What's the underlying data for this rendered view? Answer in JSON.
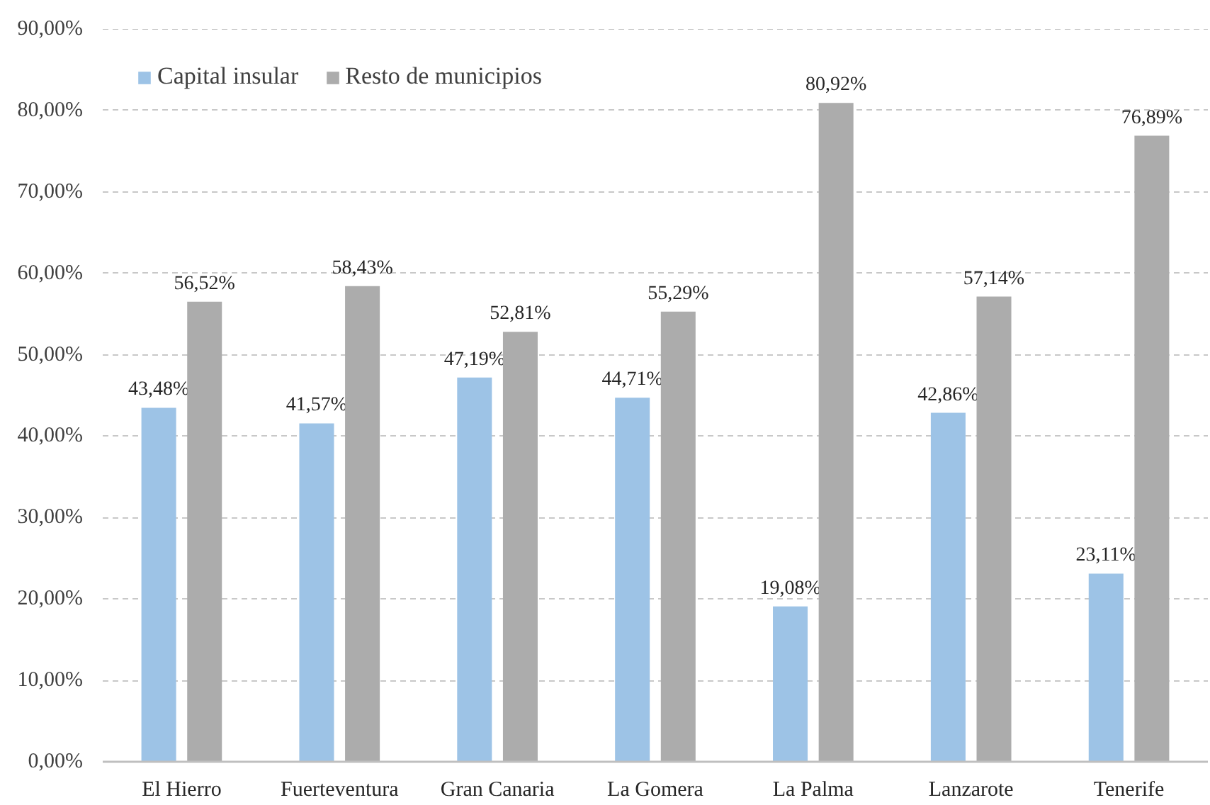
{
  "chart_data": {
    "type": "bar",
    "categories": [
      "El Hierro",
      "Fuerteventura",
      "Gran Canaria",
      "La Gomera",
      "La Palma",
      "Lanzarote",
      "Tenerife"
    ],
    "series": [
      {
        "name": "Capital insular",
        "color": "#9dc3e6",
        "values": [
          43.48,
          41.57,
          47.19,
          44.71,
          19.08,
          42.86,
          23.11
        ],
        "value_labels": [
          "43,48%",
          "41,57%",
          "47,19%",
          "44,71%",
          "19,08%",
          "42,86%",
          "23,11%"
        ]
      },
      {
        "name": "Resto de municipios",
        "color": "#acacac",
        "values": [
          56.52,
          58.43,
          52.81,
          55.29,
          80.92,
          57.14,
          76.89
        ],
        "value_labels": [
          "56,52%",
          "58,43%",
          "52,81%",
          "55,29%",
          "80,92%",
          "57,14%",
          "76,89%"
        ]
      }
    ],
    "ylim": [
      0,
      90
    ],
    "yticks": [
      {
        "value": 0,
        "label": "0,00%"
      },
      {
        "value": 10,
        "label": "10,00%"
      },
      {
        "value": 20,
        "label": "20,00%"
      },
      {
        "value": 30,
        "label": "30,00%"
      },
      {
        "value": 40,
        "label": "40,00%"
      },
      {
        "value": 50,
        "label": "50,00%"
      },
      {
        "value": 60,
        "label": "60,00%"
      },
      {
        "value": 70,
        "label": "70,00%"
      },
      {
        "value": 80,
        "label": "80,00%"
      },
      {
        "value": 90,
        "label": "90,00%"
      }
    ],
    "grid": "y",
    "legend": "top left"
  }
}
